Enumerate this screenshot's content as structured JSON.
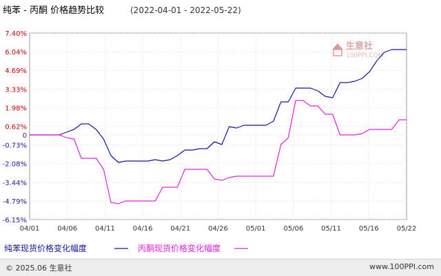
{
  "chart_data": {
    "type": "line",
    "title": "纯苯 - 丙酮 价格趋势比较",
    "date_range": "(2022-04-01 - 2022-05-22)",
    "x_ticks": [
      "04/01",
      "04/06",
      "04/11",
      "04/16",
      "04/21",
      "04/26",
      "05/01",
      "05/06",
      "05/11",
      "05/16",
      "05/22"
    ],
    "y_ticks": [
      "7.40%",
      "6.04%",
      "4.69%",
      "3.33%",
      "1.98%",
      "0.62%",
      "0",
      "-0.73%",
      "-2.08%",
      "-3.44%",
      "-4.79%",
      "-6.15%"
    ],
    "ylim": [
      -6.15,
      7.4
    ],
    "xlim_days": [
      0,
      51
    ],
    "series": [
      {
        "name": "纯苯现货价格变化幅度",
        "color": "#1414a0",
        "x": [
          0,
          4,
          5,
          6,
          7,
          8,
          9,
          10,
          11,
          12,
          13,
          14,
          15,
          16,
          17,
          18,
          19,
          20,
          21,
          22,
          23,
          24,
          25,
          26,
          27,
          28,
          29,
          30,
          31,
          32,
          33,
          34,
          35,
          36,
          37,
          38,
          39,
          40,
          41,
          42,
          43,
          44,
          45,
          46,
          47,
          48,
          49,
          50,
          51
        ],
        "values": [
          0,
          0,
          0.2,
          0.4,
          0.8,
          0.8,
          0.4,
          -0.3,
          -1.5,
          -2.0,
          -1.9,
          -1.9,
          -1.9,
          -1.9,
          -1.8,
          -1.9,
          -1.8,
          -1.5,
          -1.1,
          -1.1,
          -1.0,
          -1.0,
          -0.5,
          -0.7,
          0.6,
          0.5,
          0.7,
          0.7,
          0.7,
          0.7,
          1.0,
          2.4,
          2.4,
          3.4,
          3.4,
          3.4,
          3.2,
          2.8,
          2.7,
          3.8,
          3.8,
          3.9,
          4.1,
          4.6,
          5.4,
          6.0,
          6.2,
          6.2,
          6.2
        ]
      },
      {
        "name": "丙酮现货价格变化幅度",
        "color": "#e020e0",
        "x": [
          0,
          4,
          5,
          6,
          7,
          8,
          9,
          10,
          11,
          12,
          13,
          14,
          15,
          16,
          17,
          18,
          19,
          20,
          21,
          22,
          23,
          24,
          25,
          26,
          27,
          28,
          29,
          30,
          31,
          32,
          33,
          34,
          35,
          36,
          37,
          38,
          39,
          40,
          41,
          42,
          43,
          44,
          45,
          46,
          47,
          48,
          49,
          50,
          51
        ],
        "values": [
          0,
          0,
          -0.2,
          -0.3,
          -1.7,
          -1.7,
          -1.7,
          -2.5,
          -4.9,
          -5.0,
          -4.8,
          -4.8,
          -4.8,
          -4.8,
          -4.8,
          -3.8,
          -3.8,
          -3.8,
          -2.5,
          -2.5,
          -2.5,
          -2.5,
          -3.2,
          -3.3,
          -3.1,
          -3.0,
          -3.0,
          -3.0,
          -3.0,
          -3.0,
          -3.0,
          -0.7,
          -0.2,
          2.5,
          2.5,
          2.1,
          2.1,
          1.5,
          1.5,
          0,
          0,
          0,
          0.1,
          0.4,
          0.4,
          0.4,
          0.4,
          1.1,
          1.1
        ]
      }
    ],
    "grid": true,
    "legend_position": "bottom-left"
  },
  "watermark": {
    "text": "生意社",
    "sub_text": "100PPI.COM"
  },
  "footer": {
    "copyright": "© 2025.06 生意社",
    "url": "www.100PPI.com"
  }
}
